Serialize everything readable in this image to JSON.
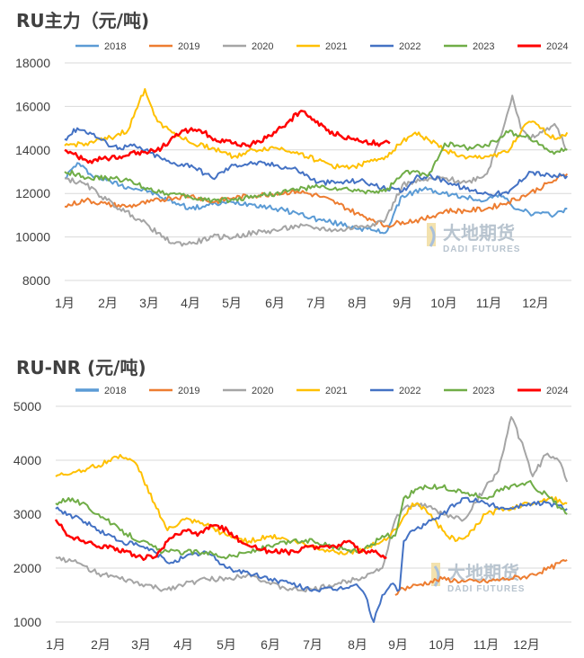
{
  "watermark": {
    "cn": "大地期货",
    "en": "DADI FUTURES"
  },
  "chart_data": [
    {
      "type": "line",
      "title": "RU主力（元/吨)",
      "ylim": [
        8000,
        18000
      ],
      "yticks": [
        8000,
        10000,
        12000,
        14000,
        16000,
        18000
      ],
      "x_labels": [
        "1月",
        "2月",
        "3月",
        "4月",
        "5月",
        "6月",
        "7月",
        "8月",
        "9月",
        "10月",
        "11月",
        "12月"
      ],
      "grid": "horizontal",
      "legend_position": "top",
      "series": [
        {
          "name": "2018",
          "color": "#5b9bd5",
          "width": 2,
          "x": [
            0,
            0.3,
            0.6,
            1,
            1.5,
            2,
            2.3,
            2.6,
            3,
            3.5,
            4,
            4.5,
            5,
            5.5,
            6,
            6.5,
            7,
            7.3,
            7.6,
            8,
            8.5,
            9,
            9.5,
            10,
            10.3,
            10.6,
            11,
            11.5,
            11.9
          ],
          "y": [
            12700,
            13400,
            12900,
            12600,
            12300,
            12100,
            11800,
            11600,
            11300,
            11500,
            11600,
            11500,
            11300,
            11100,
            10800,
            10600,
            10400,
            10300,
            10200,
            11900,
            12200,
            12000,
            11800,
            11700,
            12000,
            11400,
            11100,
            11000,
            11300
          ]
        },
        {
          "name": "2019",
          "color": "#ed7d31",
          "width": 2,
          "x": [
            0,
            0.5,
            1,
            1.5,
            2,
            2.5,
            3,
            3.5,
            4,
            4.5,
            5,
            5.5,
            6,
            6.5,
            7,
            7.3,
            7.6,
            8,
            8.5,
            9,
            9.5,
            10,
            10.5,
            11,
            11.5,
            11.9
          ],
          "y": [
            11400,
            11700,
            11500,
            11400,
            11600,
            11800,
            11900,
            11600,
            11800,
            11900,
            12000,
            12100,
            11900,
            11500,
            11000,
            10800,
            10500,
            10700,
            10800,
            11200,
            11200,
            11300,
            11600,
            12000,
            12500,
            12900
          ]
        },
        {
          "name": "2020",
          "color": "#a5a5a5",
          "width": 2,
          "x": [
            0,
            0.5,
            1,
            1.3,
            1.6,
            2,
            2.3,
            2.6,
            3,
            3.5,
            4,
            4.5,
            5,
            5.5,
            6,
            6.5,
            7,
            7.3,
            7.6,
            8,
            8.5,
            9,
            9.5,
            10,
            10.3,
            10.6,
            10.8,
            11,
            11.3,
            11.6,
            11.9
          ],
          "y": [
            12700,
            12400,
            11700,
            11300,
            11000,
            10500,
            10000,
            9700,
            9700,
            10000,
            10000,
            10200,
            10300,
            10500,
            10400,
            10300,
            10500,
            10600,
            10800,
            12400,
            12600,
            12700,
            12500,
            12900,
            14500,
            16500,
            15000,
            14500,
            14800,
            15200,
            14000
          ]
        },
        {
          "name": "2021",
          "color": "#ffc000",
          "width": 2,
          "x": [
            0,
            0.5,
            1,
            1.5,
            1.9,
            2.2,
            2.5,
            3,
            3.5,
            4,
            4.5,
            5,
            5.5,
            6,
            6.5,
            7,
            7.3,
            7.6,
            8,
            8.3,
            8.6,
            9,
            9.5,
            10,
            10.5,
            10.8,
            11,
            11.3,
            11.6,
            11.9
          ],
          "y": [
            14200,
            14300,
            14500,
            14900,
            16800,
            15300,
            14900,
            14300,
            14100,
            13700,
            14000,
            14100,
            13900,
            13500,
            13200,
            13300,
            13500,
            13700,
            14400,
            14800,
            14500,
            14000,
            13600,
            13700,
            13900,
            14800,
            15300,
            15000,
            14500,
            14800
          ]
        },
        {
          "name": "2022",
          "color": "#4472c4",
          "width": 2,
          "x": [
            0,
            0.3,
            0.6,
            1,
            1.3,
            1.6,
            2,
            2.5,
            3,
            3.5,
            4,
            4.5,
            5,
            5.5,
            6,
            6.5,
            7,
            7.3,
            7.6,
            8,
            8.3,
            8.6,
            9,
            9.5,
            10,
            10.5,
            11,
            11.5,
            11.9
          ],
          "y": [
            14500,
            15000,
            14800,
            14300,
            14100,
            14200,
            13900,
            13400,
            13300,
            12700,
            13300,
            13400,
            13300,
            13100,
            12500,
            12500,
            12600,
            12400,
            12200,
            12100,
            12700,
            12800,
            12600,
            12200,
            12000,
            12000,
            13000,
            12800,
            12800
          ]
        },
        {
          "name": "2023",
          "color": "#70ad47",
          "width": 2,
          "x": [
            0,
            0.3,
            0.6,
            1,
            1.5,
            2,
            2.5,
            3,
            3.5,
            4,
            4.5,
            5,
            5.5,
            6,
            6.5,
            7,
            7.3,
            7.6,
            8,
            8.3,
            8.6,
            9,
            9.5,
            10,
            10.5,
            11,
            11.5,
            11.9
          ],
          "y": [
            13000,
            12900,
            12700,
            12700,
            12600,
            12200,
            12000,
            11800,
            11700,
            11700,
            11900,
            12000,
            12200,
            12300,
            12200,
            12100,
            12100,
            12100,
            12900,
            13000,
            12800,
            14300,
            14100,
            14200,
            14800,
            14600,
            13900,
            14000
          ]
        },
        {
          "name": "2024",
          "color": "#ff0000",
          "width": 2.5,
          "x": [
            0,
            0.3,
            0.6,
            1,
            1.3,
            1.6,
            2,
            2.3,
            2.6,
            3,
            3.3,
            3.6,
            4,
            4.3,
            4.6,
            5,
            5.3,
            5.6,
            5.9,
            6.2,
            6.5,
            6.8,
            7.1,
            7.4,
            7.7
          ],
          "y": [
            14000,
            13700,
            13500,
            13600,
            13700,
            13900,
            13900,
            14100,
            14600,
            15000,
            14800,
            14400,
            14300,
            14200,
            14400,
            14800,
            15300,
            15800,
            15400,
            14900,
            14700,
            14500,
            14400,
            14300,
            14300
          ]
        }
      ]
    },
    {
      "type": "line",
      "title": "RU-NR (元/吨)",
      "ylim": [
        1000,
        5000
      ],
      "yticks": [
        1000,
        2000,
        3000,
        4000,
        5000
      ],
      "x_labels": [
        "1月",
        "2月",
        "3月",
        "4月",
        "5月",
        "6月",
        "7月",
        "8月",
        "9月",
        "10月",
        "11月",
        "12月"
      ],
      "grid": "horizontal",
      "legend_position": "top",
      "series": [
        {
          "name": "2018",
          "color": "#5b9bd5",
          "width": 3,
          "x": [],
          "y": []
        },
        {
          "name": "2019",
          "color": "#ed7d31",
          "width": 2,
          "x": [
            7.9,
            8,
            8.5,
            9,
            9.5,
            10,
            10.5,
            11,
            11.5,
            11.9
          ],
          "y": [
            1500,
            1600,
            1700,
            1800,
            1750,
            1750,
            1800,
            1850,
            2000,
            2150
          ]
        },
        {
          "name": "2020",
          "color": "#a5a5a5",
          "width": 2,
          "x": [
            0,
            0.5,
            1,
            1.5,
            2,
            2.5,
            3,
            3.5,
            4,
            4.5,
            5,
            5.5,
            6,
            6.5,
            7,
            7.3,
            7.6,
            7.9,
            8.1,
            8.5,
            9,
            9.5,
            10,
            10.3,
            10.6,
            10.9,
            11.1,
            11.4,
            11.7,
            11.9
          ],
          "y": [
            2200,
            2100,
            1900,
            1800,
            1700,
            1600,
            1700,
            1800,
            1800,
            1900,
            1700,
            1600,
            1600,
            1700,
            1800,
            1900,
            2000,
            2900,
            3100,
            3200,
            3000,
            2900,
            3500,
            3800,
            4800,
            4200,
            3700,
            4100,
            4000,
            3600
          ]
        },
        {
          "name": "2021",
          "color": "#ffc000",
          "width": 2,
          "x": [
            0,
            0.5,
            1,
            1.5,
            1.9,
            2.3,
            2.6,
            3,
            3.5,
            4,
            4.5,
            5,
            5.5,
            6,
            6.5,
            7,
            7.3,
            7.6,
            8,
            8.3,
            8.6,
            9,
            9.3,
            9.6,
            10,
            10.5,
            11,
            11.5,
            11.9
          ],
          "y": [
            3700,
            3800,
            3900,
            4100,
            3900,
            3200,
            2700,
            2900,
            2800,
            2600,
            2500,
            2600,
            2500,
            2400,
            2300,
            2300,
            2400,
            2500,
            2800,
            3200,
            3100,
            2700,
            2500,
            2600,
            3000,
            3100,
            3200,
            3300,
            3200
          ]
        },
        {
          "name": "2022",
          "color": "#4472c4",
          "width": 2,
          "x": [
            0,
            0.3,
            0.6,
            1,
            1.5,
            2,
            2.3,
            2.6,
            3,
            3.5,
            4,
            4.5,
            5,
            5.5,
            6,
            6.5,
            7,
            7.2,
            7.4,
            7.6,
            7.8,
            8,
            8.1,
            8.3,
            8.6,
            9,
            9.5,
            10,
            10.5,
            11,
            11.5,
            11.9
          ],
          "y": [
            3100,
            3000,
            2900,
            2700,
            2500,
            2400,
            2300,
            2100,
            2200,
            2300,
            2000,
            1900,
            1800,
            1700,
            1600,
            1600,
            1700,
            1500,
            1000,
            1500,
            1700,
            1600,
            2500,
            2700,
            2800,
            3000,
            3300,
            3200,
            3100,
            3200,
            3200,
            3100
          ]
        },
        {
          "name": "2023",
          "color": "#70ad47",
          "width": 2,
          "x": [
            0,
            0.3,
            0.6,
            1,
            1.5,
            2,
            2.5,
            3,
            3.5,
            4,
            4.5,
            5,
            5.5,
            6,
            6.5,
            7,
            7.3,
            7.6,
            7.9,
            8.1,
            8.5,
            9,
            9.5,
            10,
            10.5,
            11,
            11.5,
            11.9
          ],
          "y": [
            3200,
            3300,
            3200,
            3000,
            2700,
            2500,
            2300,
            2300,
            2300,
            2200,
            2300,
            2400,
            2500,
            2500,
            2400,
            2300,
            2400,
            2600,
            2600,
            3300,
            3500,
            3500,
            3400,
            3300,
            3500,
            3600,
            3300,
            3000
          ]
        },
        {
          "name": "2024",
          "color": "#ff0000",
          "width": 2.5,
          "x": [
            0,
            0.3,
            0.6,
            1,
            1.3,
            1.6,
            2,
            2.3,
            2.6,
            3,
            3.3,
            3.6,
            4,
            4.3,
            4.6,
            5,
            5.3,
            5.6,
            5.9,
            6.2,
            6.5,
            6.8,
            7.1,
            7.4,
            7.7
          ],
          "y": [
            2900,
            2600,
            2500,
            2400,
            2400,
            2300,
            2200,
            2200,
            2500,
            2700,
            2600,
            2800,
            2700,
            2500,
            2400,
            2300,
            2300,
            2300,
            2400,
            2400,
            2400,
            2500,
            2300,
            2300,
            2200
          ]
        }
      ]
    }
  ]
}
